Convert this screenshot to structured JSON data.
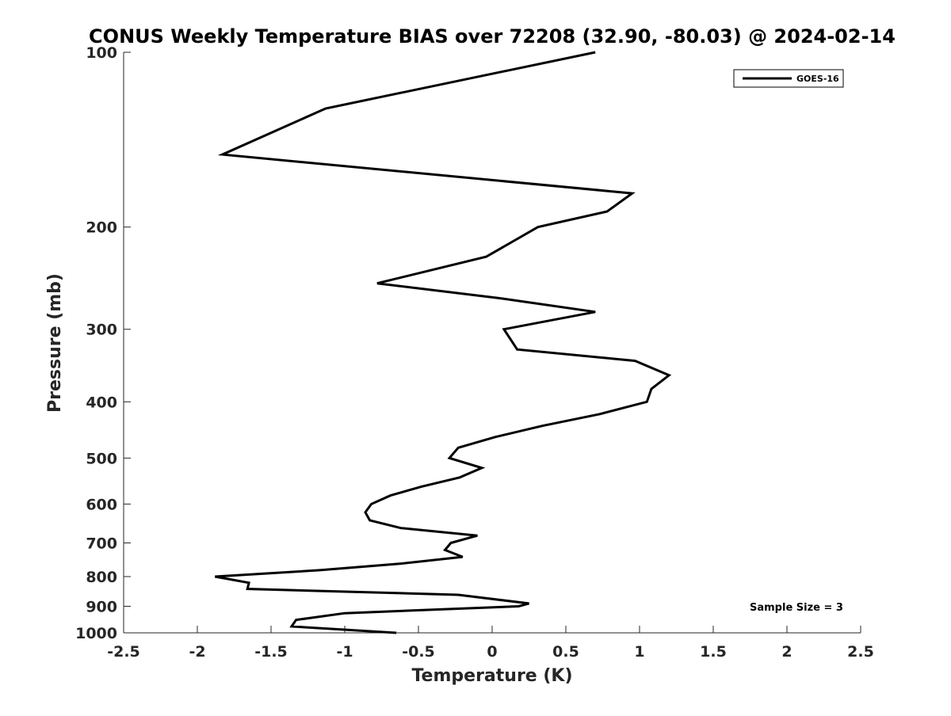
{
  "chart_data": {
    "type": "line",
    "title": "CONUS Weekly Temperature BIAS over 72208 (32.90, -80.03) @ 2024-02-14",
    "xlabel": "Temperature (K)",
    "ylabel": "Pressure (mb)",
    "xlim": [
      -2.5,
      2.5
    ],
    "ylim": [
      100,
      1000
    ],
    "y_scale": "log",
    "y_reversed": true,
    "grid": false,
    "x_ticks": [
      -2.5,
      -2,
      -1.5,
      -1,
      -0.5,
      0,
      0.5,
      1,
      1.5,
      2,
      2.5
    ],
    "x_tick_labels": [
      "-2.5",
      "-2",
      "-1.5",
      "-1",
      "-0.5",
      "0",
      "0.5",
      "1",
      "1.5",
      "2",
      "2.5"
    ],
    "y_ticks": [
      100,
      200,
      300,
      400,
      500,
      600,
      700,
      800,
      900,
      1000
    ],
    "y_tick_labels": [
      "100",
      "200",
      "300",
      "400",
      "500",
      "600",
      "700",
      "800",
      "900",
      "1000"
    ],
    "legend_position": "top-right",
    "series": [
      {
        "name": "GOES-16",
        "color": "#000000",
        "points": [
          {
            "x": 0.7,
            "p": 100
          },
          {
            "x": -1.13,
            "p": 125
          },
          {
            "x": -1.83,
            "p": 150
          },
          {
            "x": 0.95,
            "p": 175
          },
          {
            "x": 0.78,
            "p": 188
          },
          {
            "x": 0.31,
            "p": 200
          },
          {
            "x": -0.04,
            "p": 225
          },
          {
            "x": -0.78,
            "p": 250
          },
          {
            "x": 0.04,
            "p": 265
          },
          {
            "x": 0.7,
            "p": 280
          },
          {
            "x": 0.08,
            "p": 300
          },
          {
            "x": 0.17,
            "p": 325
          },
          {
            "x": 0.97,
            "p": 340
          },
          {
            "x": 1.2,
            "p": 360
          },
          {
            "x": 1.08,
            "p": 380
          },
          {
            "x": 1.05,
            "p": 400
          },
          {
            "x": 0.73,
            "p": 420
          },
          {
            "x": 0.34,
            "p": 440
          },
          {
            "x": 0.02,
            "p": 460
          },
          {
            "x": -0.23,
            "p": 480
          },
          {
            "x": -0.29,
            "p": 500
          },
          {
            "x": -0.07,
            "p": 520
          },
          {
            "x": -0.22,
            "p": 540
          },
          {
            "x": -0.48,
            "p": 560
          },
          {
            "x": -0.69,
            "p": 580
          },
          {
            "x": -0.82,
            "p": 600
          },
          {
            "x": -0.86,
            "p": 620
          },
          {
            "x": -0.83,
            "p": 640
          },
          {
            "x": -0.62,
            "p": 660
          },
          {
            "x": -0.1,
            "p": 680
          },
          {
            "x": -0.28,
            "p": 700
          },
          {
            "x": -0.32,
            "p": 720
          },
          {
            "x": -0.2,
            "p": 740
          },
          {
            "x": -0.62,
            "p": 760
          },
          {
            "x": -1.17,
            "p": 780
          },
          {
            "x": -1.88,
            "p": 800
          },
          {
            "x": -1.65,
            "p": 820
          },
          {
            "x": -1.66,
            "p": 840
          },
          {
            "x": -0.23,
            "p": 860
          },
          {
            "x": 0.25,
            "p": 890
          },
          {
            "x": 0.18,
            "p": 900
          },
          {
            "x": -1.0,
            "p": 925
          },
          {
            "x": -1.33,
            "p": 950
          },
          {
            "x": -1.36,
            "p": 975
          },
          {
            "x": -0.65,
            "p": 1000
          }
        ]
      }
    ],
    "annotation": "Sample Size = 3"
  }
}
